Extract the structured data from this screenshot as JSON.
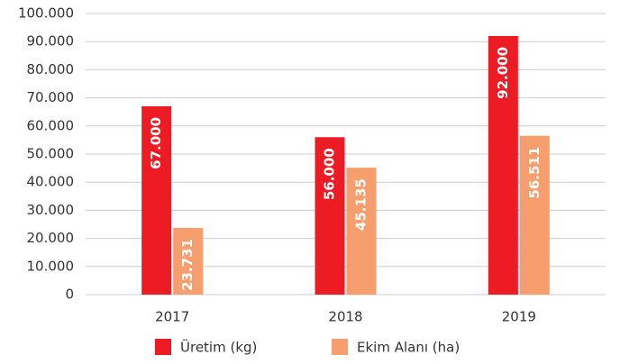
{
  "chart_data": {
    "type": "bar",
    "categories": [
      "2017",
      "2018",
      "2019"
    ],
    "series": [
      {
        "name": "Üretim (kg)",
        "color": "#ed1c24",
        "values": [
          67000,
          56000,
          92000
        ],
        "value_labels": [
          "67.000",
          "56.000",
          "92.000"
        ]
      },
      {
        "name": "Ekim Alanı (ha)",
        "color": "#f79e6e",
        "values": [
          23731,
          45135,
          56511
        ],
        "value_labels": [
          "23.731",
          "45.135",
          "56.511"
        ]
      }
    ],
    "ylim": [
      0,
      100000
    ],
    "yticks": [
      0,
      {
        "value": 10000,
        "label": "10.000"
      },
      {
        "value": 20000,
        "label": "20.000"
      },
      {
        "value": 30000,
        "label": "30.000"
      },
      {
        "value": 40000,
        "label": "40.000"
      },
      {
        "value": 50000,
        "label": "50.000"
      },
      {
        "value": 60000,
        "label": "60.000"
      },
      {
        "value": 70000,
        "label": "70.000"
      },
      {
        "value": 80000,
        "label": "80.000"
      },
      {
        "value": 90000,
        "label": "90.000"
      },
      {
        "value": 100000,
        "label": "100.000"
      }
    ],
    "grid": true,
    "legend": "bottom"
  }
}
